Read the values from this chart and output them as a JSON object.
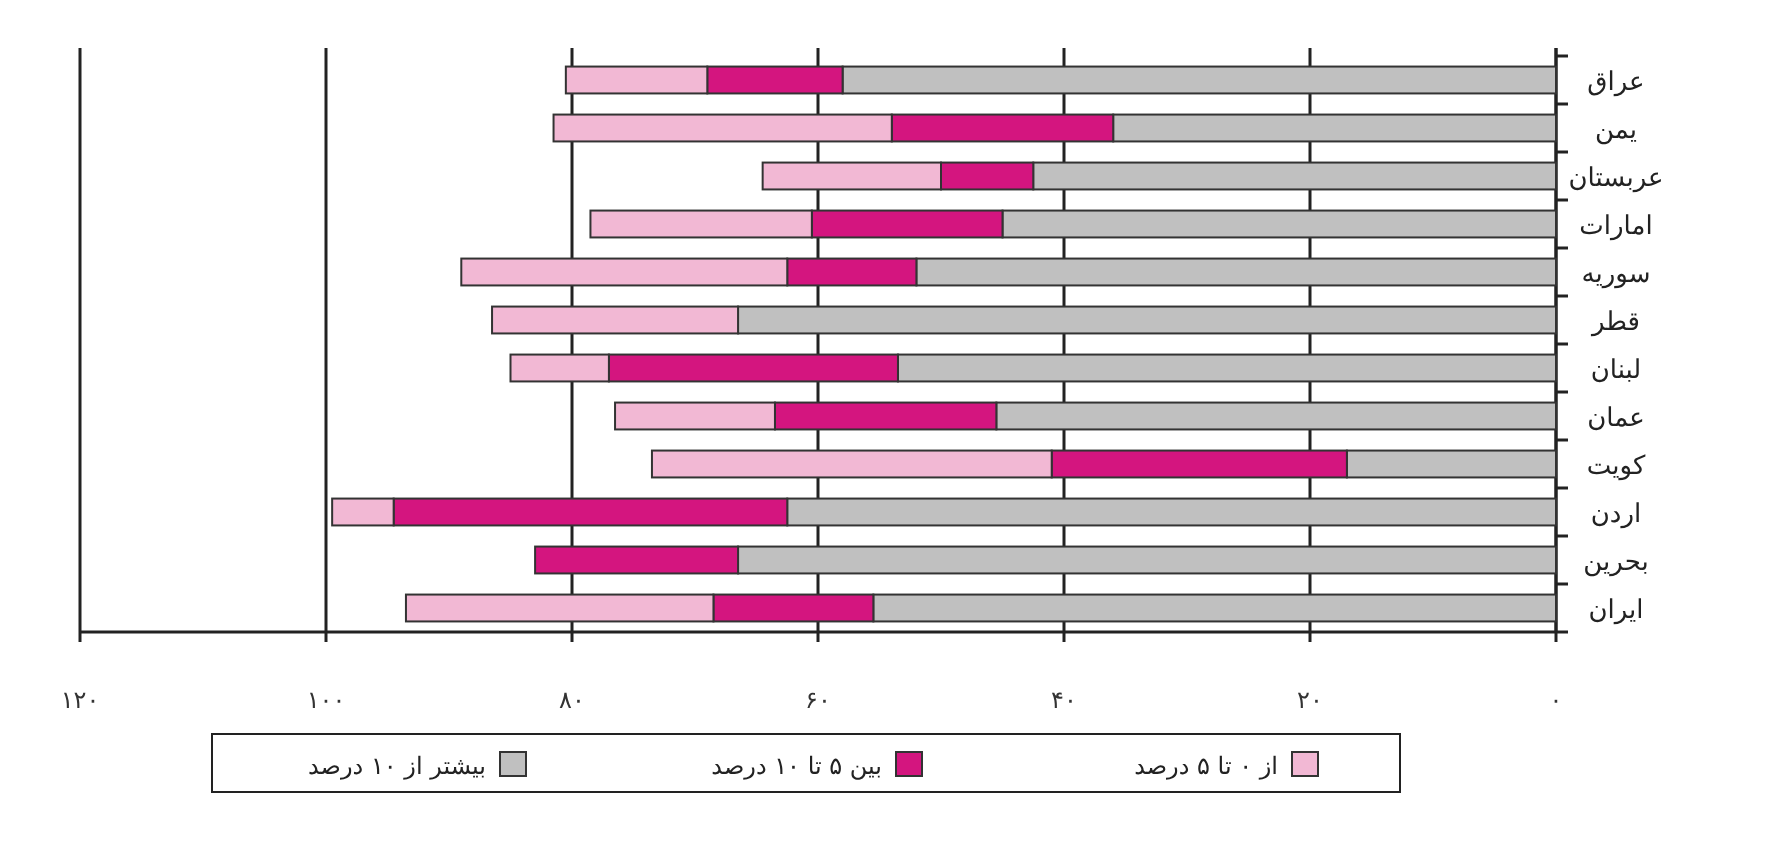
{
  "chart_data": {
    "type": "bar",
    "orientation": "horizontal",
    "stacked": true,
    "categories": [
      "عراق",
      "یمن",
      "عربستان",
      "امارات",
      "سوریه",
      "قطر",
      "لبنان",
      "عمان",
      "کویت",
      "اردن",
      "بحرین",
      "ایران"
    ],
    "series": [
      {
        "name": "بیشتر از ۱۰ درصد",
        "color": "#c0c0c0",
        "values": [
          58,
          36,
          42.5,
          45,
          52,
          66.5,
          53.5,
          45.5,
          17,
          62.5,
          66.5,
          55.5
        ]
      },
      {
        "name": "بین ۵ تا ۱۰ درصد",
        "color": "#d4157f",
        "values": [
          11,
          18,
          7.5,
          15.5,
          10.5,
          0,
          23.5,
          18,
          24,
          32,
          16.5,
          13
        ]
      },
      {
        "name": "از ۰ تا ۵ درصد",
        "color": "#f2b8d4",
        "values": [
          11.5,
          27.5,
          14.5,
          18,
          26.5,
          20,
          8,
          13,
          32.5,
          5,
          0,
          25
        ]
      }
    ],
    "xlim": [
      120,
      0
    ],
    "xticks": [
      {
        "value": 120,
        "label": "۱۲۰"
      },
      {
        "value": 100,
        "label": "۱۰۰"
      },
      {
        "value": 80,
        "label": "۸۰"
      },
      {
        "value": 60,
        "label": "۶۰"
      },
      {
        "value": 40,
        "label": "۴۰"
      },
      {
        "value": 20,
        "label": "۲۰"
      },
      {
        "value": 0,
        "label": "۰"
      }
    ],
    "grid": "x",
    "legend": "bottom"
  }
}
